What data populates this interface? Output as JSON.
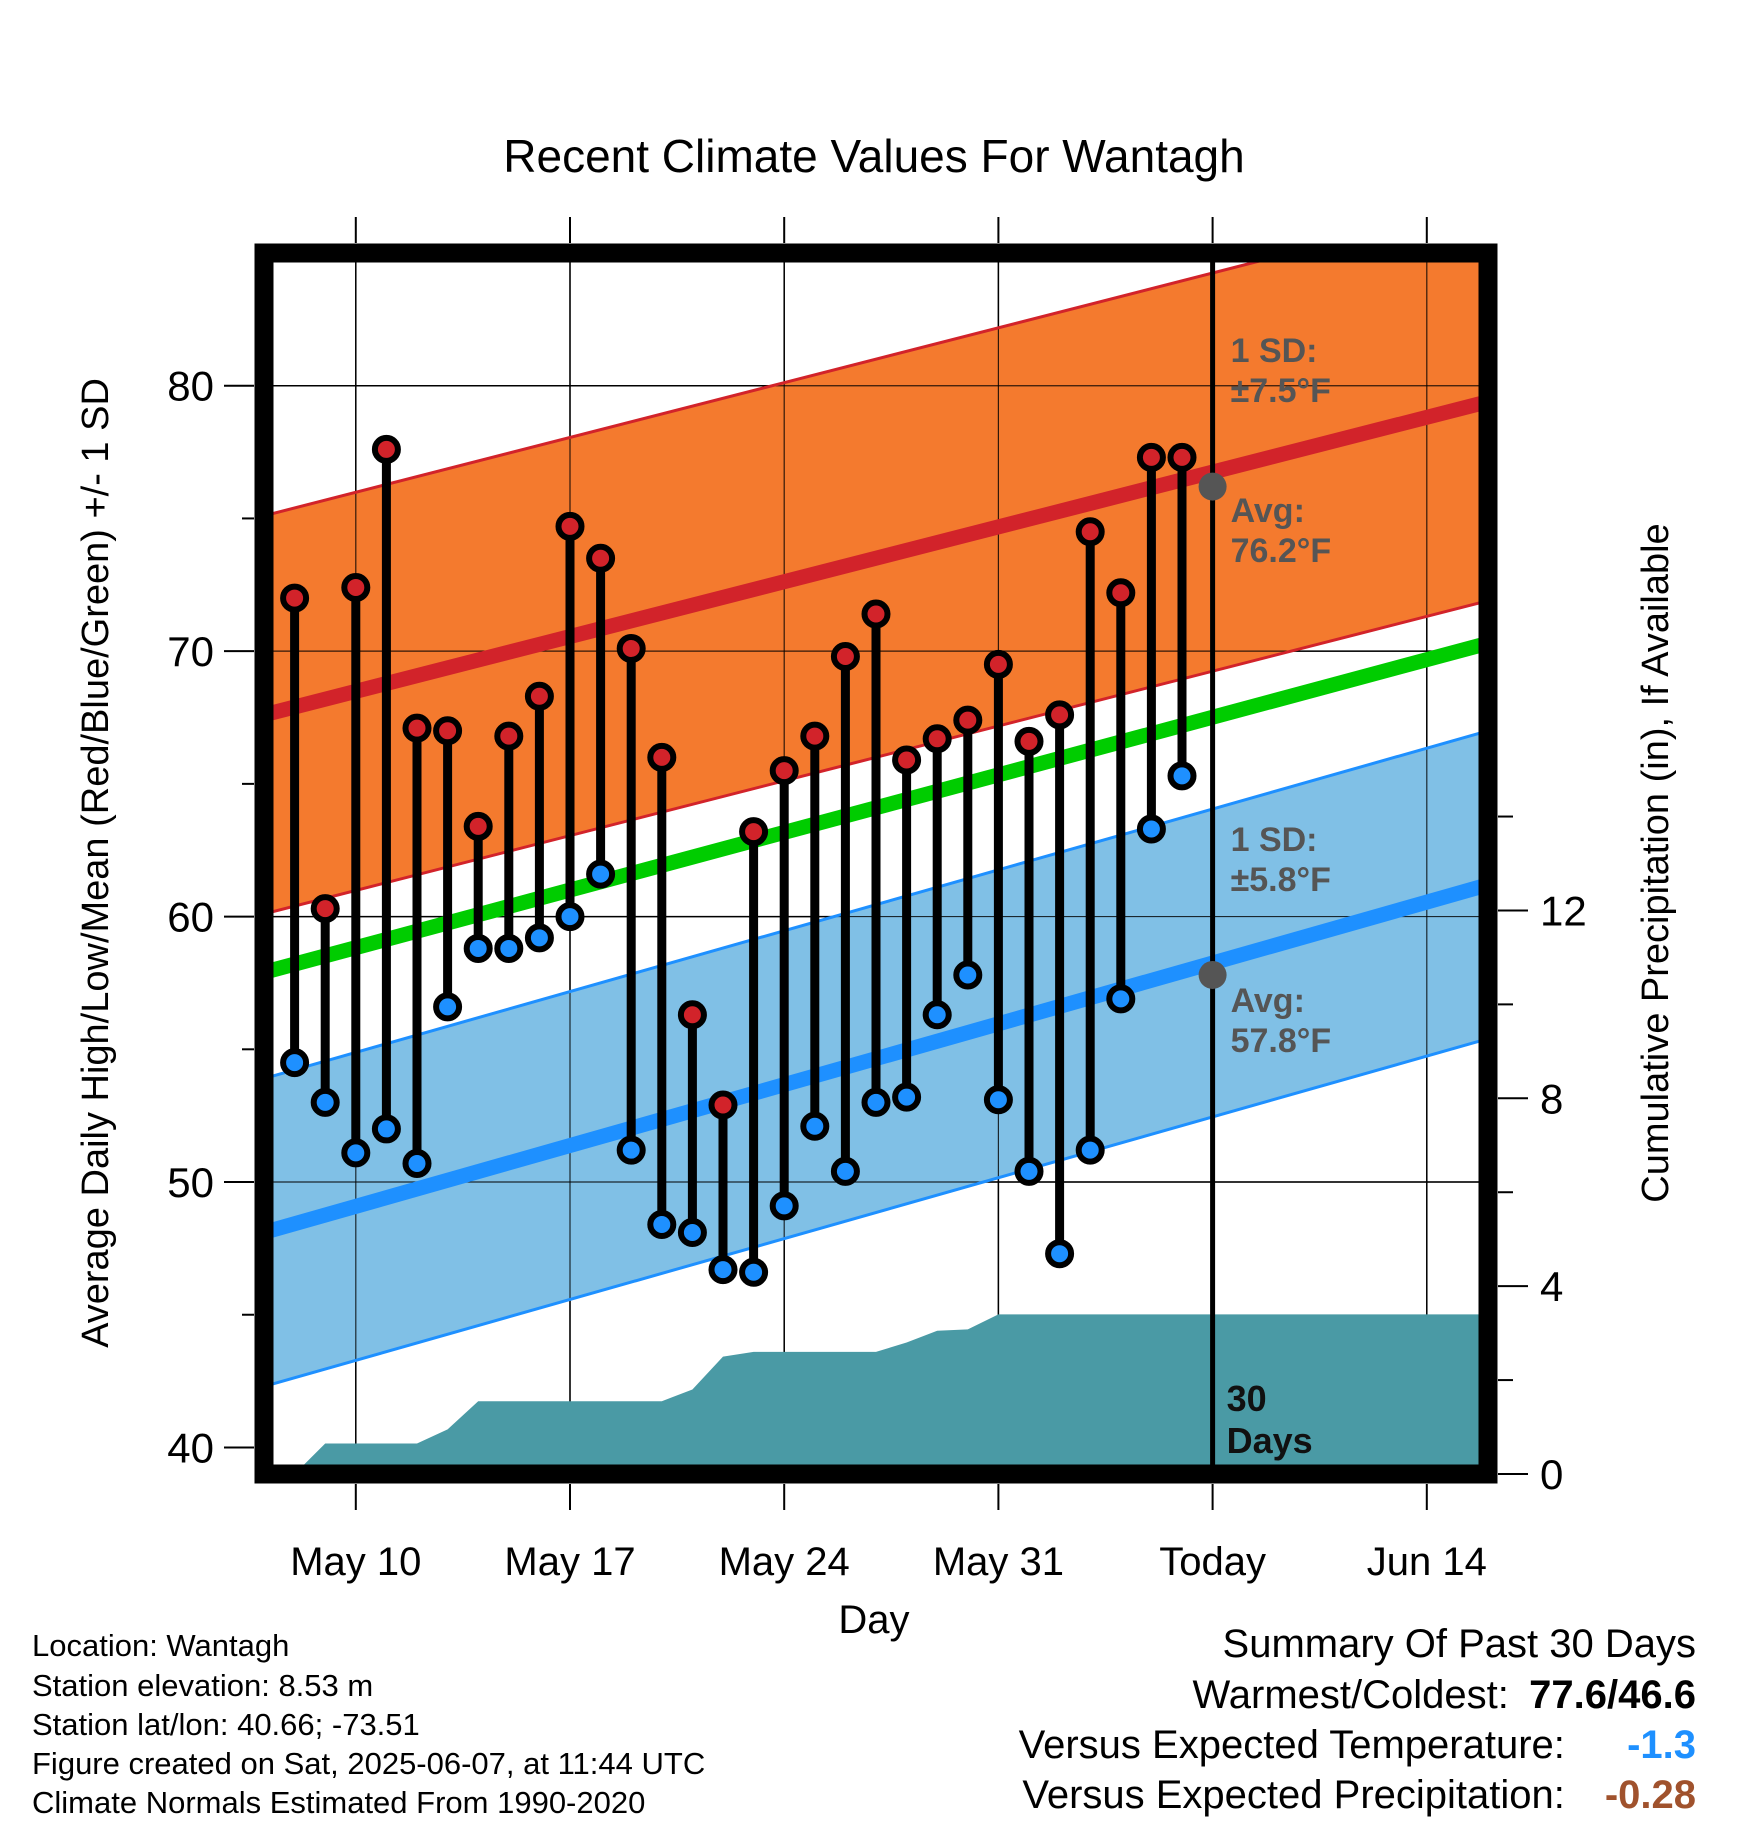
{
  "chart_data": {
    "type": "line",
    "title": "Recent Climate Values For Wantagh",
    "xlabel": "Day",
    "ylabel": "Average Daily High/Low/Mean (Red/Blue/Green) +/- 1 SD",
    "ylabel_right": "Cumulative Precipitation (in), If Available",
    "ylim": [
      39,
      85
    ],
    "y_ticks": [
      "40",
      "50",
      "60",
      "70",
      "80"
    ],
    "y2_ticks": [
      "0",
      "4",
      "8",
      "12"
    ],
    "y2lim": [
      0,
      26
    ],
    "xlim": [
      "2025-05-07",
      "2025-06-16"
    ],
    "x_ticks": [
      {
        "date": "2025-05-10",
        "label": "May 10"
      },
      {
        "date": "2025-05-17",
        "label": "May 17"
      },
      {
        "date": "2025-05-24",
        "label": "May 24"
      },
      {
        "date": "2025-05-31",
        "label": "May 31"
      },
      {
        "date": "2025-06-07",
        "label": "Today"
      },
      {
        "date": "2025-06-14",
        "label": "Jun 14"
      }
    ],
    "grid": true,
    "today": "2025-06-07",
    "days_label": [
      "30",
      "Days"
    ],
    "daily": [
      {
        "date": "2025-05-08",
        "high": 72.0,
        "low": 54.5
      },
      {
        "date": "2025-05-09",
        "high": 60.3,
        "low": 53.0
      },
      {
        "date": "2025-05-10",
        "high": 72.4,
        "low": 51.1
      },
      {
        "date": "2025-05-11",
        "high": 77.6,
        "low": 52.0
      },
      {
        "date": "2025-05-12",
        "high": 67.1,
        "low": 50.7
      },
      {
        "date": "2025-05-13",
        "high": 67.0,
        "low": 56.6
      },
      {
        "date": "2025-05-14",
        "high": 63.4,
        "low": 58.8
      },
      {
        "date": "2025-05-15",
        "high": 66.8,
        "low": 58.8
      },
      {
        "date": "2025-05-16",
        "high": 68.3,
        "low": 59.2
      },
      {
        "date": "2025-05-17",
        "high": 74.7,
        "low": 60.0
      },
      {
        "date": "2025-05-18",
        "high": 73.5,
        "low": 61.6
      },
      {
        "date": "2025-05-19",
        "high": 70.1,
        "low": 51.2
      },
      {
        "date": "2025-05-20",
        "high": 66.0,
        "low": 48.4
      },
      {
        "date": "2025-05-21",
        "high": 56.3,
        "low": 48.1
      },
      {
        "date": "2025-05-22",
        "high": 52.9,
        "low": 46.7
      },
      {
        "date": "2025-05-23",
        "high": 63.2,
        "low": 46.6
      },
      {
        "date": "2025-05-24",
        "high": 65.5,
        "low": 49.1
      },
      {
        "date": "2025-05-25",
        "high": 66.8,
        "low": 52.1
      },
      {
        "date": "2025-05-26",
        "high": 69.8,
        "low": 50.4
      },
      {
        "date": "2025-05-27",
        "high": 71.4,
        "low": 53.0
      },
      {
        "date": "2025-05-28",
        "high": 65.9,
        "low": 53.2
      },
      {
        "date": "2025-05-29",
        "high": 66.7,
        "low": 56.3
      },
      {
        "date": "2025-05-30",
        "high": 67.4,
        "low": 57.8
      },
      {
        "date": "2025-05-31",
        "high": 69.5,
        "low": 53.1
      },
      {
        "date": "2025-06-01",
        "high": 66.6,
        "low": 50.4
      },
      {
        "date": "2025-06-02",
        "high": 67.6,
        "low": 47.3
      },
      {
        "date": "2025-06-03",
        "high": 74.5,
        "low": 51.2
      },
      {
        "date": "2025-06-04",
        "high": 72.2,
        "low": 56.9
      },
      {
        "date": "2025-06-05",
        "high": 77.3,
        "low": 63.3
      },
      {
        "date": "2025-06-06",
        "high": 77.3,
        "low": 65.3
      }
    ],
    "normals": {
      "start": "2025-05-07",
      "end": "2025-06-16",
      "avg_high": [
        67.6,
        79.4
      ],
      "avg_low": [
        48.1,
        61.2
      ],
      "avg_mean": [
        57.9,
        70.3
      ],
      "sd_high": 7.5,
      "sd_low": 5.8
    },
    "today_avg_high": 76.2,
    "today_avg_low": 57.8,
    "precip_cumulative": [
      {
        "date": "2025-05-08",
        "value": 0.0
      },
      {
        "date": "2025-05-09",
        "value": 0.65
      },
      {
        "date": "2025-05-10",
        "value": 0.65
      },
      {
        "date": "2025-05-11",
        "value": 0.65
      },
      {
        "date": "2025-05-12",
        "value": 0.65
      },
      {
        "date": "2025-05-13",
        "value": 0.95
      },
      {
        "date": "2025-05-14",
        "value": 1.55
      },
      {
        "date": "2025-05-15",
        "value": 1.55
      },
      {
        "date": "2025-05-16",
        "value": 1.55
      },
      {
        "date": "2025-05-17",
        "value": 1.55
      },
      {
        "date": "2025-05-18",
        "value": 1.55
      },
      {
        "date": "2025-05-19",
        "value": 1.55
      },
      {
        "date": "2025-05-20",
        "value": 1.55
      },
      {
        "date": "2025-05-21",
        "value": 1.8
      },
      {
        "date": "2025-05-22",
        "value": 2.5
      },
      {
        "date": "2025-05-23",
        "value": 2.6
      },
      {
        "date": "2025-05-24",
        "value": 2.6
      },
      {
        "date": "2025-05-25",
        "value": 2.6
      },
      {
        "date": "2025-05-26",
        "value": 2.6
      },
      {
        "date": "2025-05-27",
        "value": 2.6
      },
      {
        "date": "2025-05-28",
        "value": 2.8
      },
      {
        "date": "2025-05-29",
        "value": 3.05
      },
      {
        "date": "2025-05-30",
        "value": 3.08
      },
      {
        "date": "2025-05-31",
        "value": 3.4
      },
      {
        "date": "2025-06-01",
        "value": 3.4
      },
      {
        "date": "2025-06-02",
        "value": 3.4
      },
      {
        "date": "2025-06-07",
        "value": 3.4
      },
      {
        "date": "2025-06-16",
        "value": 3.4
      }
    ],
    "annotations": {
      "high_sd": [
        "1 SD:",
        "±7.5°F"
      ],
      "high_avg": [
        "Avg:",
        "76.2°F"
      ],
      "low_sd": [
        "1 SD:",
        "±5.8°F"
      ],
      "low_avg": [
        "Avg:",
        "57.8°F"
      ]
    }
  },
  "colors": {
    "high_band": "#f47a2e",
    "high_line": "#d2232a",
    "low_band": "#80c0e6",
    "low_line": "#1e90ff",
    "mean_line": "#00cc00",
    "precip": "#4a9aa5",
    "high_dot": "#d2232a",
    "low_dot": "#1e90ff",
    "annotation": "#555555",
    "temp_anomaly": "#1e90ff",
    "precip_anomaly": "#a0522d"
  },
  "footer": {
    "location": "Location: Wantagh",
    "elevation": "Station elevation: 8.53 m",
    "latlon": "Station lat/lon: 40.66; -73.51",
    "created": "Figure created on Sat, 2025-06-07, at 11:44 UTC",
    "normals": "Climate Normals Estimated From 1990-2020"
  },
  "summary": {
    "title": "Summary Of Past 30 Days",
    "warm_cold_label": "Warmest/Coldest:",
    "warm_cold_value": "77.6/46.6",
    "temp_label": "Versus Expected Temperature:",
    "temp_value": "-1.3",
    "precip_label": "Versus Expected Precipitation:",
    "precip_value": "-0.28"
  }
}
